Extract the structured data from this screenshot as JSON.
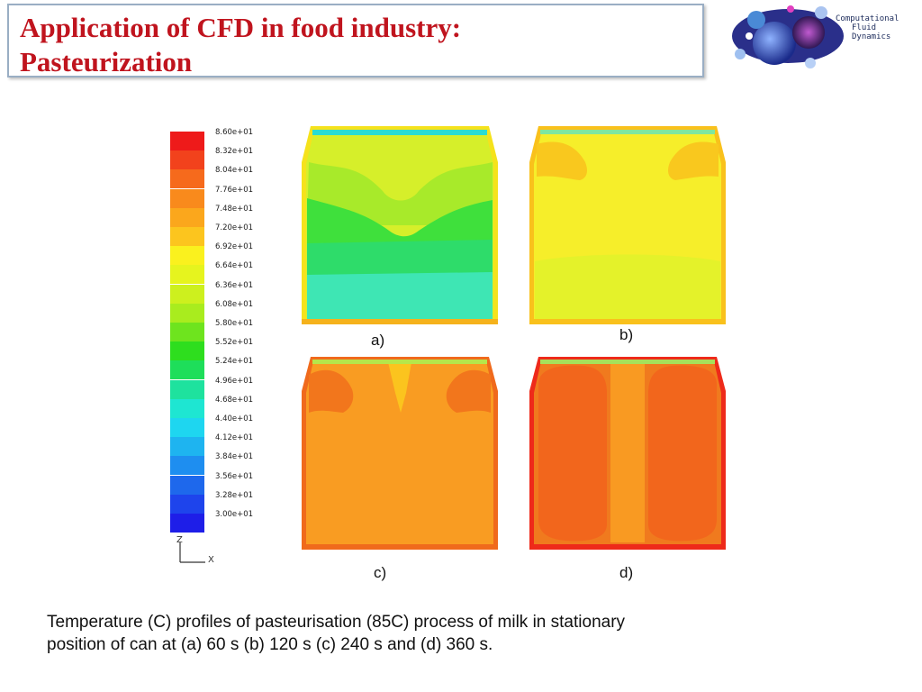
{
  "slide": {
    "title_line1": "Application of CFD in food industry:",
    "title_line2": "Pasteurization",
    "logo": {
      "line1": "Computational",
      "line2": "Fluid",
      "line3": "Dynamics"
    },
    "legend": {
      "labels": [
        "8.60e+01",
        "8.32e+01",
        "8.04e+01",
        "7.76e+01",
        "7.48e+01",
        "7.20e+01",
        "6.92e+01",
        "6.64e+01",
        "6.36e+01",
        "6.08e+01",
        "5.80e+01",
        "5.52e+01",
        "5.24e+01",
        "4.96e+01",
        "4.68e+01",
        "4.40e+01",
        "4.12e+01",
        "3.84e+01",
        "3.56e+01",
        "3.28e+01",
        "3.00e+01"
      ],
      "colors": [
        "#ee1a1a",
        "#f2421c",
        "#f66a1c",
        "#f98a1c",
        "#fba71c",
        "#fcc51e",
        "#faf11e",
        "#e6f41e",
        "#cdf01e",
        "#a9ec1e",
        "#6ee41e",
        "#2ede1e",
        "#1ede5a",
        "#1ee29e",
        "#1ee6d2",
        "#1ed6f0",
        "#1eb4f0",
        "#1e8ef0",
        "#1e68ec",
        "#1e44ec",
        "#1e1ee8"
      ]
    },
    "axes": {
      "vertical": "Z",
      "horizontal": "X"
    },
    "panels": [
      {
        "id": "a",
        "label": "a)"
      },
      {
        "id": "b",
        "label": "b)"
      },
      {
        "id": "c",
        "label": "c)"
      },
      {
        "id": "d",
        "label": "d)"
      }
    ],
    "caption_line1": "Temperature (C) profiles of pasteurisation (85C) process of milk in stationary",
    "caption_line2": "position of can at (a) 60 s (b) 120 s (c) 240 s and (d) 360 s."
  }
}
